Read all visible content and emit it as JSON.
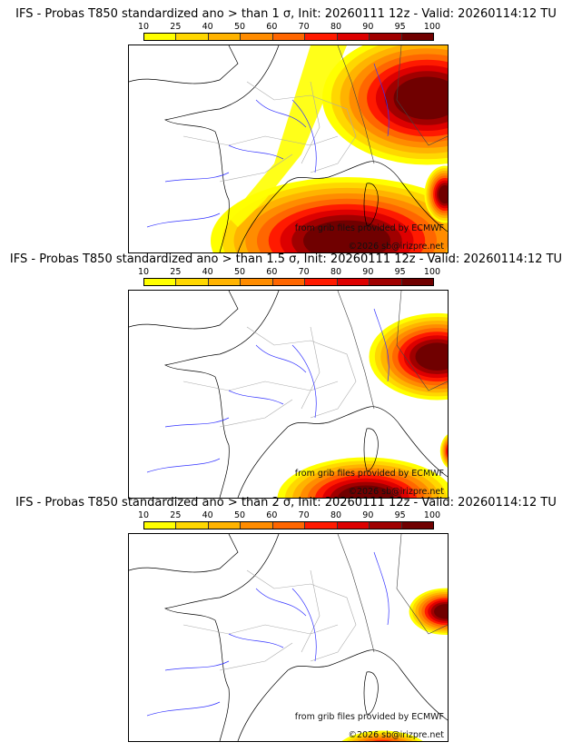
{
  "colorbar": {
    "ticks": [
      "10",
      "25",
      "40",
      "50",
      "60",
      "70",
      "80",
      "90",
      "95",
      "100"
    ],
    "colors": [
      "#ffff00",
      "#ffd700",
      "#ffb300",
      "#ff8c00",
      "#ff6600",
      "#ff1a00",
      "#dd0000",
      "#a00000",
      "#700000"
    ]
  },
  "panels": [
    {
      "title": "IFS - Probas T850  standardized ano > than 1 σ, Init: 20260111 12z - Valid: 20260114:12 TU",
      "intensity": 1.0
    },
    {
      "title": "IFS - Probas T850  standardized ano > than 1.5 σ, Init: 20260111 12z - Valid: 20260114:12 TU",
      "intensity": 0.65
    },
    {
      "title": "IFS - Probas T850  standardized ano > than 2 σ, Init: 20260111 12z - Valid: 20260114:12 TU",
      "intensity": 0.35
    }
  ],
  "credits": {
    "source": "from grib files provided by ECMWF",
    "copyright": "©2026 sb@irizpre.net"
  }
}
